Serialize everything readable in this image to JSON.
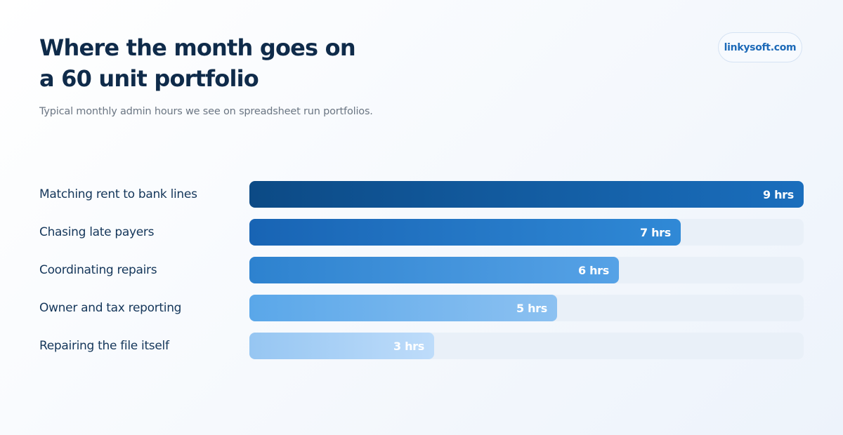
{
  "header": {
    "title": "Where the month goes on a 60 unit portfolio",
    "subtitle": "Typical monthly admin hours we see on spreadsheet run portfolios.",
    "brand": "linkysoft.com"
  },
  "chart_data": {
    "type": "bar",
    "orientation": "horizontal",
    "title": "Where the month goes on a 60 unit portfolio",
    "subtitle": "Typical monthly admin hours we see on spreadsheet run portfolios.",
    "categories": [
      "Matching rent to bank lines",
      "Chasing late payers",
      "Coordinating repairs",
      "Owner and tax reporting",
      "Repairing the file itself"
    ],
    "values": [
      9,
      7,
      6,
      5,
      3
    ],
    "value_labels": [
      "9 hrs",
      "7 hrs",
      "6 hrs",
      "5 hrs",
      "3 hrs"
    ],
    "unit": "hrs",
    "xlim": [
      0,
      9
    ],
    "grid": false,
    "legend": "none",
    "colors": [
      [
        "#0c4a85",
        "#1a6ebd"
      ],
      [
        "#1864b4",
        "#3089d6"
      ],
      [
        "#2d82cf",
        "#56a2e6"
      ],
      [
        "#5aa7e9",
        "#8cc1f1"
      ],
      [
        "#96c6f2",
        "#bedcfa"
      ]
    ],
    "track_color": "#e9f0f8"
  }
}
